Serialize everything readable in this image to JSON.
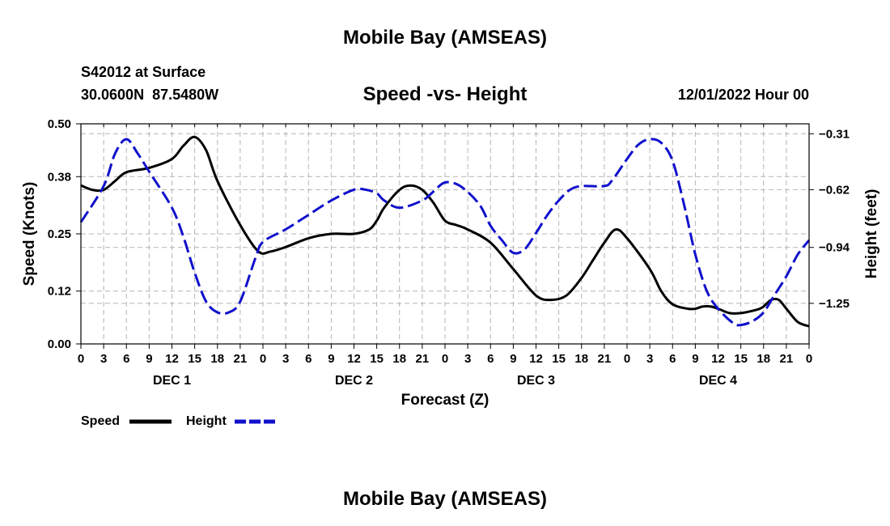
{
  "page_title": "Mobile Bay (AMSEAS)",
  "footer_title": "Mobile Bay (AMSEAS)",
  "station": "S42012 at Surface",
  "coords": "30.0600N  87.5480W",
  "date_label": "12/01/2022 Hour 00",
  "colors": {
    "speed": "#000000",
    "height": "#1010cc",
    "grid": "#b4b4b4"
  },
  "chart_data": {
    "type": "line",
    "title": "Speed -vs- Height",
    "xlabel": "Forecast (Z)",
    "ylabel": "Speed (Knots)",
    "y2label": "Height (feet)",
    "xlim": [
      0,
      96
    ],
    "ylim": [
      0,
      0.5
    ],
    "y2lim": [
      -1.475,
      -0.255
    ],
    "yticks": [
      0.0,
      0.12,
      0.25,
      0.38,
      0.5
    ],
    "yticklabels": [
      "0.00",
      "0.12",
      "0.25",
      "0.38",
      "0.50"
    ],
    "y2ticks": [
      -1.25,
      -0.94,
      -0.62,
      -0.31
    ],
    "y2ticklabels": [
      "-1.25",
      "-0.94",
      "-0.62",
      "-0.31"
    ],
    "xticks": [
      0,
      3,
      6,
      9,
      12,
      15,
      18,
      21,
      24,
      27,
      30,
      33,
      36,
      39,
      42,
      45,
      48,
      51,
      54,
      57,
      60,
      63,
      66,
      69,
      72,
      75,
      78,
      81,
      84,
      87,
      90,
      93,
      96
    ],
    "xticklabels": [
      "0",
      "3",
      "6",
      "9",
      "12",
      "15",
      "18",
      "21",
      "0",
      "3",
      "6",
      "9",
      "12",
      "15",
      "18",
      "21",
      "0",
      "3",
      "6",
      "9",
      "12",
      "15",
      "18",
      "21",
      "0",
      "3",
      "6",
      "9",
      "12",
      "15",
      "18",
      "21",
      "0"
    ],
    "day_labels": [
      {
        "x": 12,
        "label": "DEC 1"
      },
      {
        "x": 36,
        "label": "DEC 2"
      },
      {
        "x": 60,
        "label": "DEC 3"
      },
      {
        "x": 84,
        "label": "DEC 4"
      }
    ],
    "legend": [
      {
        "name": "Speed",
        "style": "solid"
      },
      {
        "name": "Height",
        "style": "dashed"
      }
    ],
    "series": [
      {
        "name": "Speed",
        "axis": "left",
        "style": "solid",
        "x": [
          0,
          1.5,
          3,
          4.5,
          6,
          9,
          12,
          13.5,
          15,
          16.5,
          18,
          21,
          23.4,
          25,
          27,
          30,
          33,
          36,
          38,
          39,
          40,
          42,
          43.5,
          45,
          46.5,
          48,
          49.5,
          51,
          54,
          57,
          60,
          62,
          64,
          66,
          67.5,
          69,
          70.5,
          72,
          75,
          76.5,
          78,
          80,
          81,
          82,
          83,
          84,
          85.5,
          87,
          88.5,
          89.5,
          90,
          91,
          92,
          93,
          94.5,
          96
        ],
        "y": [
          0.36,
          0.35,
          0.35,
          0.37,
          0.39,
          0.4,
          0.42,
          0.45,
          0.47,
          0.44,
          0.37,
          0.27,
          0.21,
          0.21,
          0.22,
          0.24,
          0.25,
          0.25,
          0.26,
          0.28,
          0.31,
          0.35,
          0.36,
          0.35,
          0.32,
          0.28,
          0.27,
          0.26,
          0.23,
          0.17,
          0.11,
          0.1,
          0.11,
          0.15,
          0.19,
          0.23,
          0.26,
          0.24,
          0.17,
          0.12,
          0.09,
          0.08,
          0.08,
          0.085,
          0.085,
          0.08,
          0.07,
          0.07,
          0.075,
          0.08,
          0.085,
          0.1,
          0.1,
          0.08,
          0.05,
          0.04
        ]
      },
      {
        "name": "Height",
        "axis": "right",
        "style": "dashed",
        "x": [
          0,
          3,
          4.5,
          6,
          7.5,
          9,
          12,
          13.5,
          15,
          16.5,
          18,
          19.5,
          21,
          23,
          24,
          27,
          30,
          33,
          36,
          37.5,
          39,
          40,
          42,
          45,
          46.5,
          48,
          50,
          52.5,
          54,
          55.5,
          57,
          58.5,
          60,
          61.5,
          63,
          64.5,
          66,
          69,
          70,
          72,
          73.5,
          75,
          76.5,
          78,
          79.5,
          81,
          82.5,
          84,
          86,
          87,
          88.5,
          90,
          91.5,
          93,
          94.5,
          96
        ],
        "y": [
          -0.8,
          -0.6,
          -0.42,
          -0.34,
          -0.42,
          -0.52,
          -0.72,
          -0.88,
          -1.08,
          -1.24,
          -1.3,
          -1.3,
          -1.24,
          -1.0,
          -0.91,
          -0.84,
          -0.76,
          -0.68,
          -0.62,
          -0.62,
          -0.64,
          -0.68,
          -0.72,
          -0.68,
          -0.63,
          -0.58,
          -0.6,
          -0.7,
          -0.82,
          -0.9,
          -0.97,
          -0.95,
          -0.86,
          -0.76,
          -0.68,
          -0.62,
          -0.6,
          -0.6,
          -0.57,
          -0.45,
          -0.37,
          -0.34,
          -0.36,
          -0.46,
          -0.7,
          -0.98,
          -1.18,
          -1.28,
          -1.36,
          -1.37,
          -1.35,
          -1.3,
          -1.2,
          -1.1,
          -0.98,
          -0.9
        ]
      }
    ]
  }
}
